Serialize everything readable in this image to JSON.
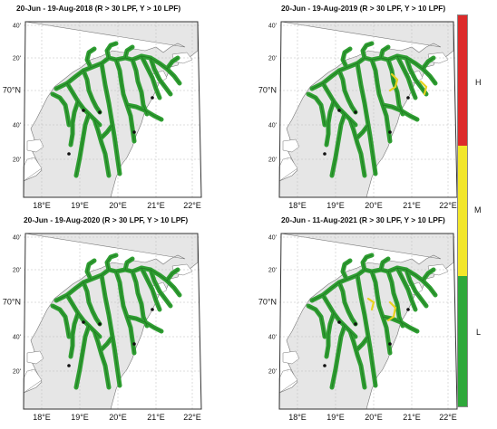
{
  "panels": [
    {
      "title": "20-Jun - 19-Aug-2018 (R > 30 LPF, Y > 10 LPF)",
      "highlights": []
    },
    {
      "title": "20-Jun - 19-Aug-2019 (R > 30 LPF, Y > 10 LPF)",
      "highlights": [
        "yellow"
      ]
    },
    {
      "title": "20-Jun - 19-Aug-2020 (R > 30 LPF, Y > 10 LPF)",
      "highlights": []
    },
    {
      "title": "20-Jun - 11-Aug-2021 (R > 30 LPF, Y > 10 LPF)",
      "highlights": [
        "yellow"
      ]
    }
  ],
  "axes": {
    "lon_ticks": [
      "18°E",
      "19°E",
      "20°E",
      "21°E",
      "22°E"
    ],
    "lat_ticks": [
      "40'",
      "20'",
      "70°N",
      "40'",
      "20'"
    ]
  },
  "colorbar": {
    "labels": [
      "H",
      "M",
      "L"
    ],
    "colors": {
      "H": "#dd2a2a",
      "M": "#f2e62a",
      "L": "#2ea83a"
    }
  },
  "colors": {
    "land": "#e6e6e6",
    "sea": "#ffffff",
    "route": "#2f9e32",
    "route_dark": "#1f7a22",
    "yellow": "#e8d21e",
    "grid": "#bbbbbb"
  }
}
